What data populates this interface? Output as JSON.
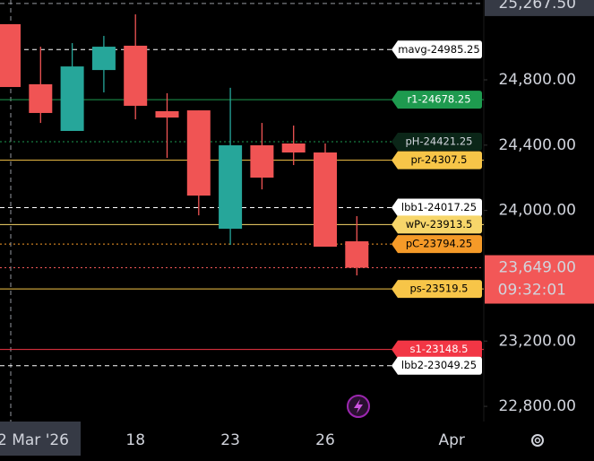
{
  "chart_data": {
    "type": "candlestick",
    "categories": [
      null,
      null,
      null,
      null,
      "18",
      null,
      null,
      "23",
      null,
      null,
      "26",
      null,
      null,
      null,
      "Apr"
    ],
    "open": [
      25141,
      24773,
      24487,
      24860,
      25009,
      24608,
      24613,
      23888,
      24399,
      24410,
      24355,
      23811,
      null,
      null,
      null
    ],
    "high": [
      25141,
      25003,
      25025,
      25069,
      25201,
      24718,
      24613,
      24751,
      24536,
      24520,
      24410,
      23965,
      null,
      null,
      null
    ],
    "low": [
      24756,
      24536,
      24487,
      24723,
      24558,
      24322,
      23970,
      23789,
      24129,
      24278,
      23778,
      23602,
      null,
      null,
      null
    ],
    "close": [
      24756,
      24597,
      24882,
      25003,
      24641,
      24569,
      24091,
      24399,
      24201,
      24355,
      23778,
      23649,
      null,
      null,
      null
    ],
    "up_color": "#26a69a",
    "down_color": "#f05454",
    "ylim": [
      22707,
      25289
    ],
    "yticks": [
      {
        "value": 22800,
        "label": "22,800.00"
      },
      {
        "value": 23200,
        "label": "23,200.00"
      },
      {
        "value": 24000,
        "label": "24,000.00"
      },
      {
        "value": 24400,
        "label": "24,400.00"
      },
      {
        "value": 24800,
        "label": "24,800.00"
      }
    ],
    "levels": [
      {
        "label": "mavg-24985.25",
        "value": 24985.25,
        "color": "#ffffff",
        "style": "dashed"
      },
      {
        "label": "r1-24678.25",
        "value": 24678.25,
        "color": "#1e9a4f",
        "style": "solid"
      },
      {
        "label": "pH-24421.25",
        "value": 24421.25,
        "color": "#1e9a4f",
        "style": "dotted"
      },
      {
        "label": "pr-24307.5",
        "value": 24307.5,
        "color": "#f7c548",
        "style": "solid"
      },
      {
        "label": "lbb1-24017.25",
        "value": 24017.25,
        "color": "#ffffff",
        "style": "dashed"
      },
      {
        "label": "wPv-23913.5",
        "value": 23913.5,
        "color": "#f7d66a",
        "style": "solid"
      },
      {
        "label": "pC-23794.25",
        "value": 23794.25,
        "color": "#f59a28",
        "style": "dotted"
      },
      {
        "label": "ps-23519.5",
        "value": 23519.5,
        "color": "#f7c548",
        "style": "solid"
      },
      {
        "label": "s1-23148.5",
        "value": 23148.5,
        "color": "#f23645",
        "style": "solid"
      },
      {
        "label": "lbb2-23049.25",
        "value": 23049.25,
        "color": "#ffffff",
        "style": "dashed"
      }
    ],
    "current_price": {
      "value": 23649,
      "label": "23,649.00",
      "countdown": "09:32:01",
      "color": "#f25757"
    },
    "crosshair": {
      "x_label": "2 Mar '26",
      "y_value": 25267.5,
      "y_label": "25,267.50"
    }
  }
}
